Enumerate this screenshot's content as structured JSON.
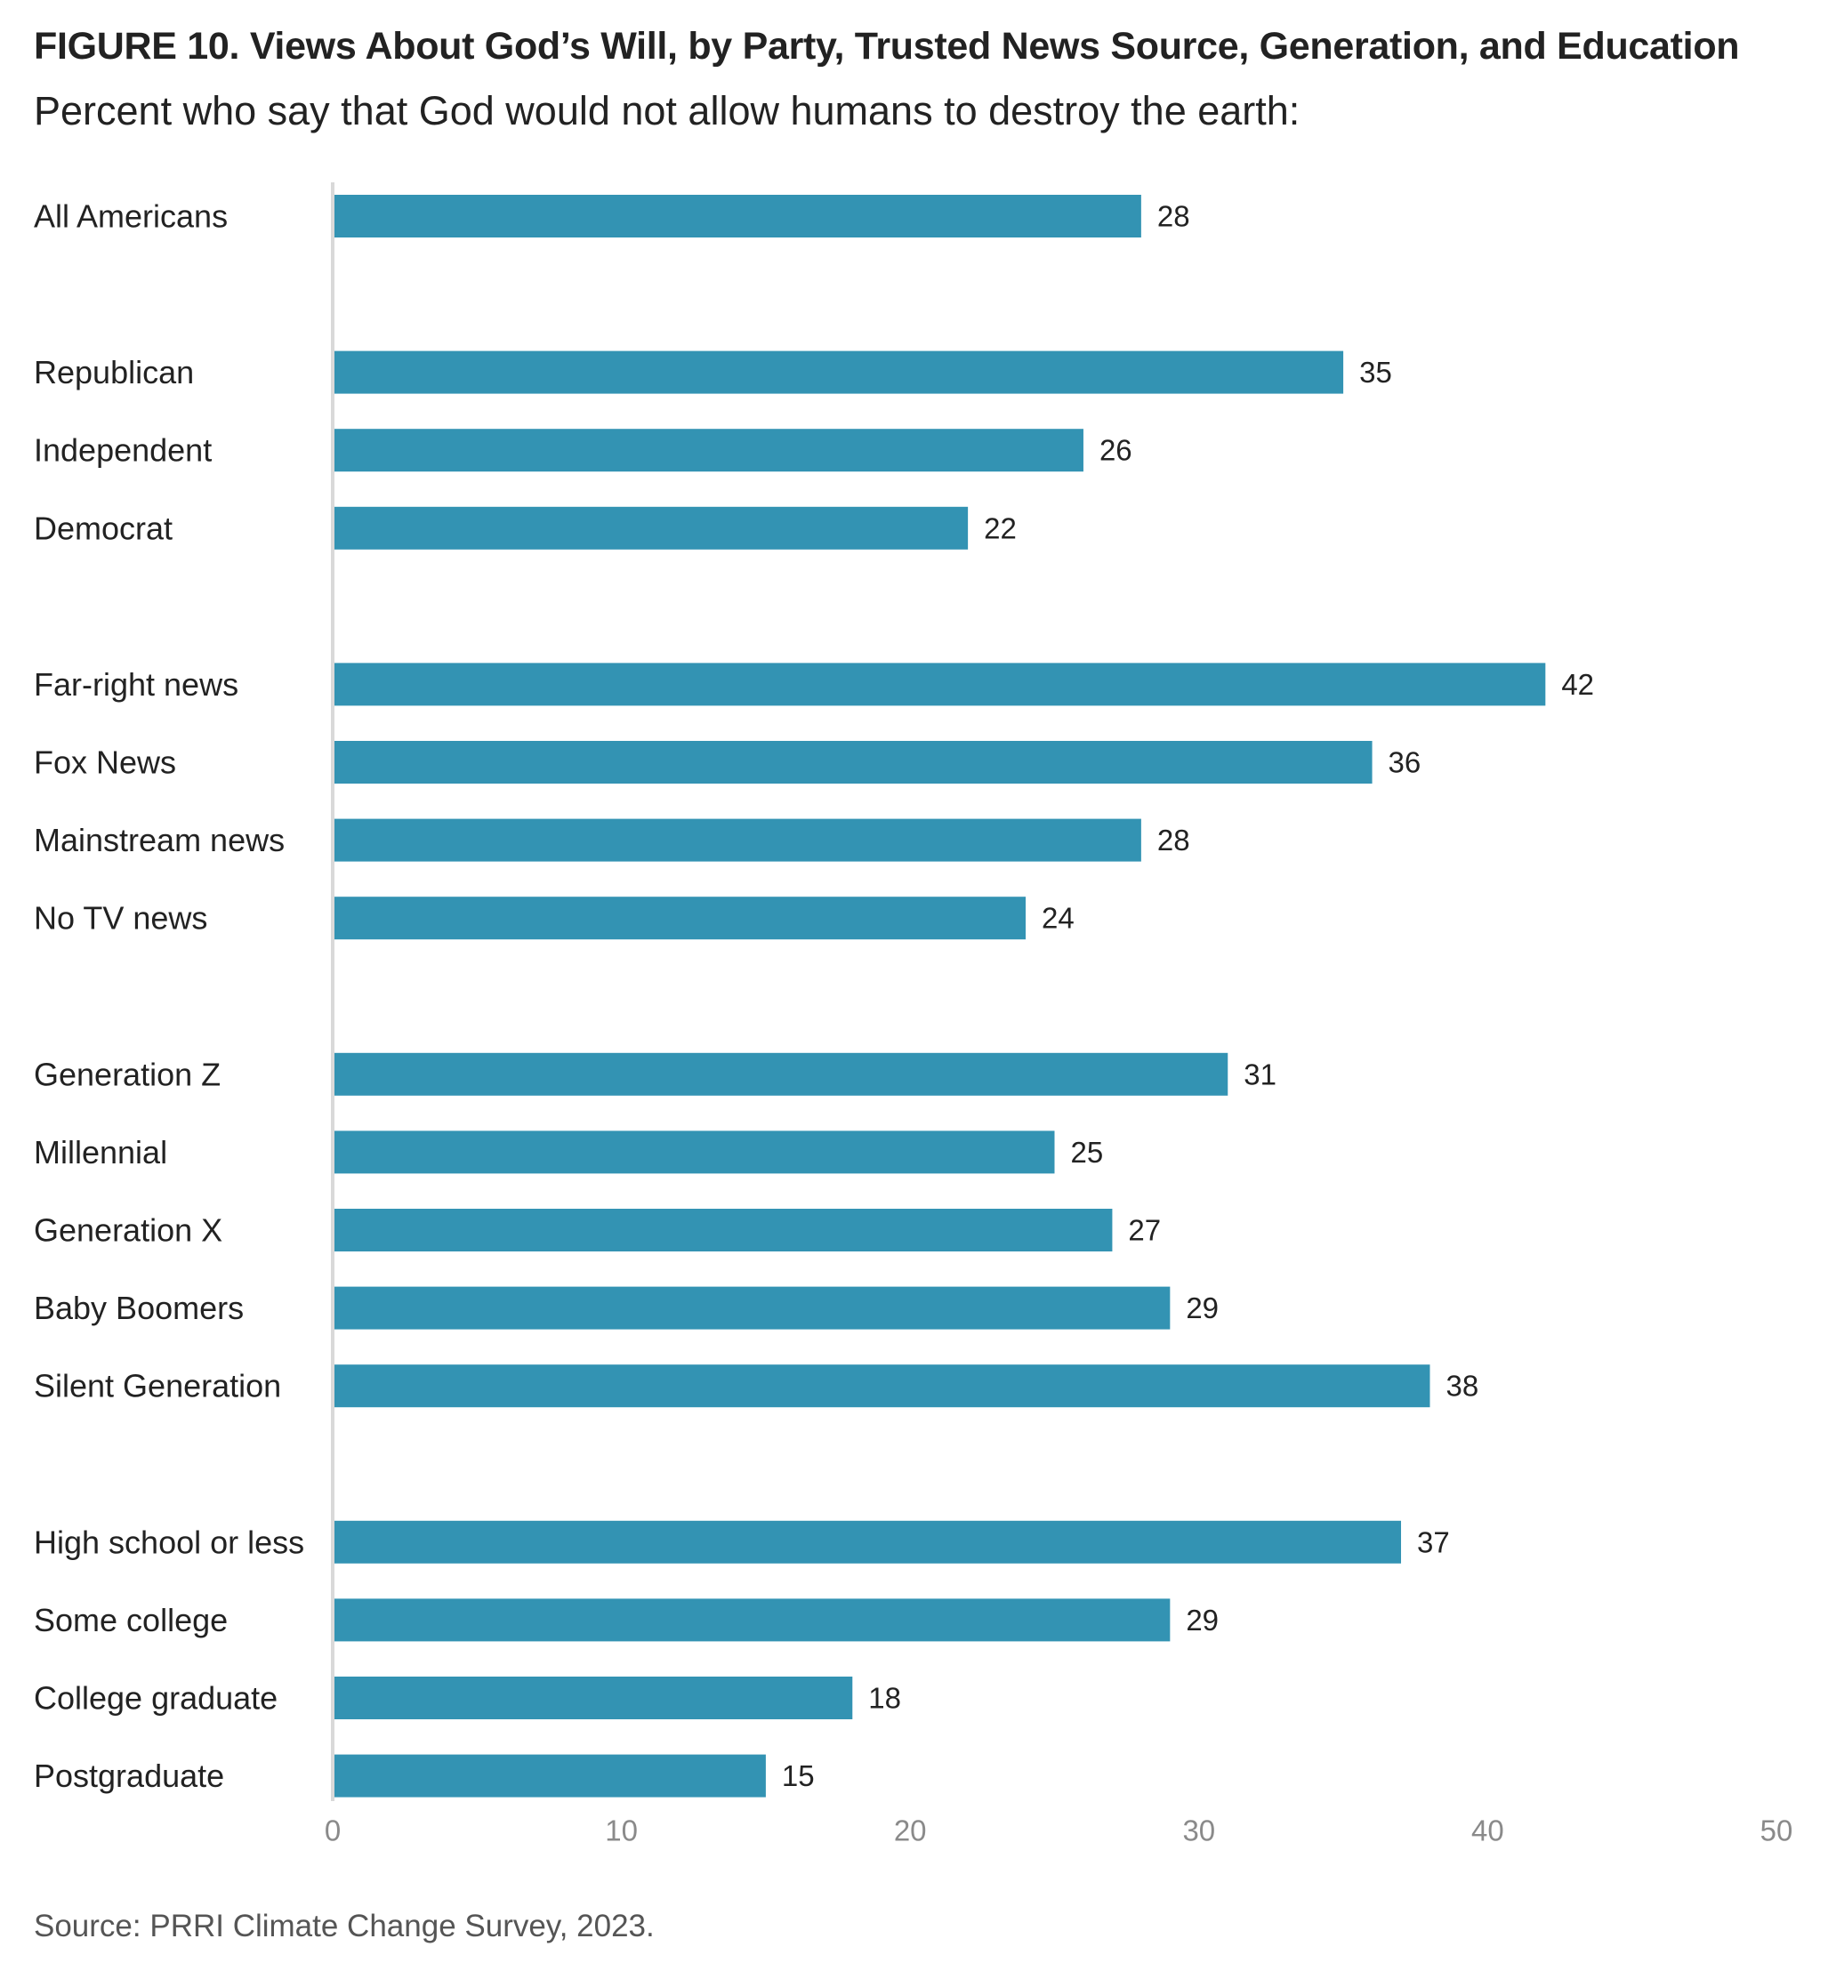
{
  "title": "FIGURE 10.  Views About God’s Will, by Party, Trusted News Source, Generation, and Education",
  "subtitle": "Percent who say that God would not allow humans to destroy the earth:",
  "source": "Source: PRRI Climate Change Survey, 2023.",
  "colors": {
    "bar": "#3393b3",
    "axis": "#d9d9d9"
  },
  "chart_data": {
    "type": "bar",
    "orientation": "horizontal",
    "groups": [
      {
        "categories": [
          "All Americans"
        ],
        "values": [
          28
        ]
      },
      {
        "categories": [
          "Republican",
          "Independent",
          "Democrat"
        ],
        "values": [
          35,
          26,
          22
        ]
      },
      {
        "categories": [
          "Far-right news",
          "Fox News",
          "Mainstream news",
          "No TV news"
        ],
        "values": [
          42,
          36,
          28,
          24
        ]
      },
      {
        "categories": [
          "Generation Z",
          "Millennial",
          "Generation X",
          "Baby Boomers",
          "Silent Generation"
        ],
        "values": [
          31,
          25,
          27,
          29,
          38
        ]
      },
      {
        "categories": [
          "High school or less",
          "Some college",
          "College graduate",
          "Postgraduate"
        ],
        "values": [
          37,
          29,
          18,
          15
        ]
      }
    ],
    "xlim": [
      0,
      50
    ],
    "xticks": [
      0,
      10,
      20,
      30,
      40,
      50
    ],
    "grid": false,
    "data_labels": true
  }
}
